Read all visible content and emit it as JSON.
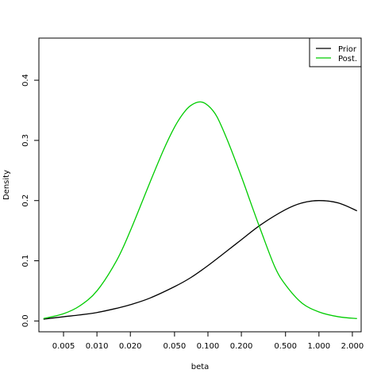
{
  "chart_data": {
    "type": "line",
    "title": "",
    "xlabel": "beta",
    "ylabel": "Density",
    "x_scale": "log",
    "xlim": [
      0.003,
      2.4
    ],
    "ylim": [
      -0.018,
      0.47
    ],
    "x_ticks": [
      0.005,
      0.01,
      0.02,
      0.05,
      0.1,
      0.2,
      0.5,
      1.0,
      2.0
    ],
    "x_tick_labels": [
      "0.005",
      "0.010",
      "0.020",
      "0.050",
      "0.100",
      "0.200",
      "0.500",
      "1.000",
      "2.000"
    ],
    "y_ticks": [
      0.0,
      0.1,
      0.2,
      0.3,
      0.4
    ],
    "y_tick_labels": [
      "0.0",
      "0.1",
      "0.2",
      "0.3",
      "0.4"
    ],
    "grid": false,
    "legend_position": "top-right",
    "series": [
      {
        "name": "Prior",
        "color": "#000000",
        "x": [
          0.0033,
          0.005,
          0.007,
          0.01,
          0.015,
          0.02,
          0.03,
          0.05,
          0.07,
          0.1,
          0.15,
          0.2,
          0.3,
          0.5,
          0.7,
          1.0,
          1.5,
          2.2
        ],
        "y": [
          0.003,
          0.007,
          0.01,
          0.014,
          0.021,
          0.027,
          0.038,
          0.057,
          0.072,
          0.092,
          0.117,
          0.135,
          0.16,
          0.185,
          0.196,
          0.2,
          0.196,
          0.183
        ]
      },
      {
        "name": "Post.",
        "color": "#00cc00",
        "x": [
          0.0033,
          0.005,
          0.007,
          0.01,
          0.015,
          0.02,
          0.03,
          0.04,
          0.05,
          0.06,
          0.07,
          0.085,
          0.1,
          0.12,
          0.15,
          0.2,
          0.25,
          0.3,
          0.4,
          0.5,
          0.7,
          1.0,
          1.5,
          2.2
        ],
        "y": [
          0.004,
          0.012,
          0.025,
          0.05,
          0.1,
          0.15,
          0.23,
          0.285,
          0.322,
          0.345,
          0.358,
          0.364,
          0.358,
          0.34,
          0.3,
          0.24,
          0.19,
          0.15,
          0.09,
          0.06,
          0.03,
          0.015,
          0.007,
          0.004
        ]
      }
    ]
  }
}
